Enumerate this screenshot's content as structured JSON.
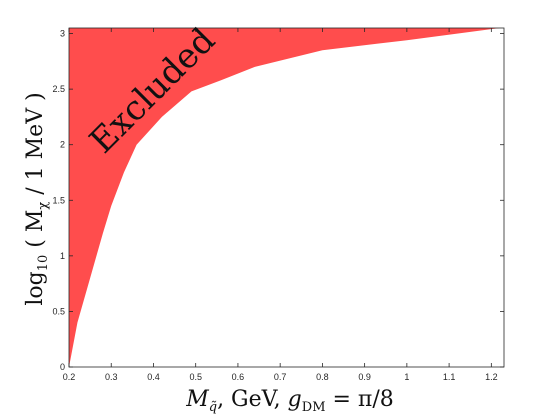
{
  "chart_data": {
    "type": "area",
    "title": "",
    "xlabel": "M_q̃, GeV, g_DM = π/8",
    "ylabel": "log10( M_χ / 1 MeV )",
    "xlim": [
      0.2,
      1.23
    ],
    "ylim": [
      0,
      3.05
    ],
    "grid": false,
    "legend": "none",
    "x_ticks": [
      "0.2",
      "0.3",
      "0.4",
      "0.5",
      "0.6",
      "0.7",
      "0.8",
      "0.9",
      "1",
      "1.1",
      "1.2"
    ],
    "y_ticks": [
      "0",
      "0.5",
      "1",
      "1.5",
      "2",
      "2.5",
      "3"
    ],
    "annotation": "Excluded",
    "fill_color": "#ff4d4d",
    "boundary": {
      "x": [
        0.2,
        0.22,
        0.25,
        0.28,
        0.3,
        0.33,
        0.36,
        0.42,
        0.49,
        0.56,
        0.64,
        0.8,
        1.0,
        1.22
      ],
      "y": [
        0.0,
        0.4,
        0.8,
        1.2,
        1.45,
        1.75,
        2.0,
        2.25,
        2.48,
        2.58,
        2.7,
        2.85,
        2.94,
        3.05
      ]
    }
  }
}
